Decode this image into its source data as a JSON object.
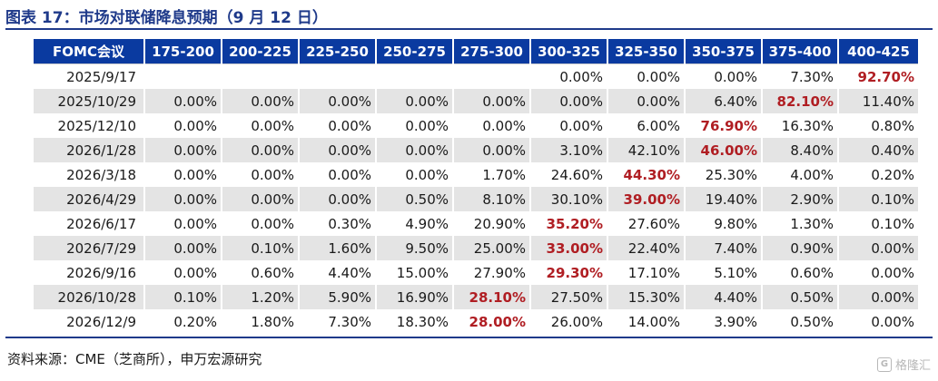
{
  "figure": {
    "title": "图表 17：市场对联储降息预期（9 月 12 日）",
    "source": "资料来源：CME（芝商所），申万宏源研究",
    "watermark_text": "格隆汇",
    "watermark_icon": "G"
  },
  "table": {
    "headers": [
      "FOMC会议",
      "175-200",
      "200-225",
      "225-250",
      "250-275",
      "275-300",
      "300-325",
      "325-350",
      "350-375",
      "375-400",
      "400-425"
    ],
    "highlight_color": "#b01e23",
    "header_bg": "#0a3aa0",
    "rows": [
      {
        "date": "2025/9/17",
        "values": [
          "",
          "",
          "",
          "",
          "",
          "0.00%",
          "0.00%",
          "0.00%",
          "7.30%",
          "92.70%"
        ],
        "max_index": 9
      },
      {
        "date": "2025/10/29",
        "values": [
          "0.00%",
          "0.00%",
          "0.00%",
          "0.00%",
          "0.00%",
          "0.00%",
          "0.00%",
          "6.40%",
          "82.10%",
          "11.40%"
        ],
        "max_index": 8
      },
      {
        "date": "2025/12/10",
        "values": [
          "0.00%",
          "0.00%",
          "0.00%",
          "0.00%",
          "0.00%",
          "0.00%",
          "6.00%",
          "76.90%",
          "16.30%",
          "0.80%"
        ],
        "max_index": 7
      },
      {
        "date": "2026/1/28",
        "values": [
          "0.00%",
          "0.00%",
          "0.00%",
          "0.00%",
          "0.00%",
          "3.10%",
          "42.10%",
          "46.00%",
          "8.40%",
          "0.40%"
        ],
        "max_index": 7
      },
      {
        "date": "2026/3/18",
        "values": [
          "0.00%",
          "0.00%",
          "0.00%",
          "0.00%",
          "1.70%",
          "24.60%",
          "44.30%",
          "25.30%",
          "4.00%",
          "0.20%"
        ],
        "max_index": 6
      },
      {
        "date": "2026/4/29",
        "values": [
          "0.00%",
          "0.00%",
          "0.00%",
          "0.50%",
          "8.10%",
          "30.10%",
          "39.00%",
          "19.40%",
          "2.90%",
          "0.10%"
        ],
        "max_index": 6
      },
      {
        "date": "2026/6/17",
        "values": [
          "0.00%",
          "0.00%",
          "0.30%",
          "4.90%",
          "20.90%",
          "35.20%",
          "27.60%",
          "9.80%",
          "1.30%",
          "0.10%"
        ],
        "max_index": 5
      },
      {
        "date": "2026/7/29",
        "values": [
          "0.00%",
          "0.10%",
          "1.60%",
          "9.50%",
          "25.00%",
          "33.00%",
          "22.40%",
          "7.40%",
          "0.90%",
          "0.00%"
        ],
        "max_index": 5
      },
      {
        "date": "2026/9/16",
        "values": [
          "0.00%",
          "0.60%",
          "4.40%",
          "15.00%",
          "27.90%",
          "29.30%",
          "17.10%",
          "5.10%",
          "0.60%",
          "0.00%"
        ],
        "max_index": 5
      },
      {
        "date": "2026/10/28",
        "values": [
          "0.10%",
          "1.20%",
          "5.90%",
          "16.90%",
          "28.10%",
          "27.50%",
          "15.30%",
          "4.40%",
          "0.50%",
          "0.00%"
        ],
        "max_index": 4
      },
      {
        "date": "2026/12/9",
        "values": [
          "0.20%",
          "1.80%",
          "7.30%",
          "18.30%",
          "28.00%",
          "26.00%",
          "14.00%",
          "3.90%",
          "0.50%",
          "0.00%"
        ],
        "max_index": 4
      }
    ]
  }
}
